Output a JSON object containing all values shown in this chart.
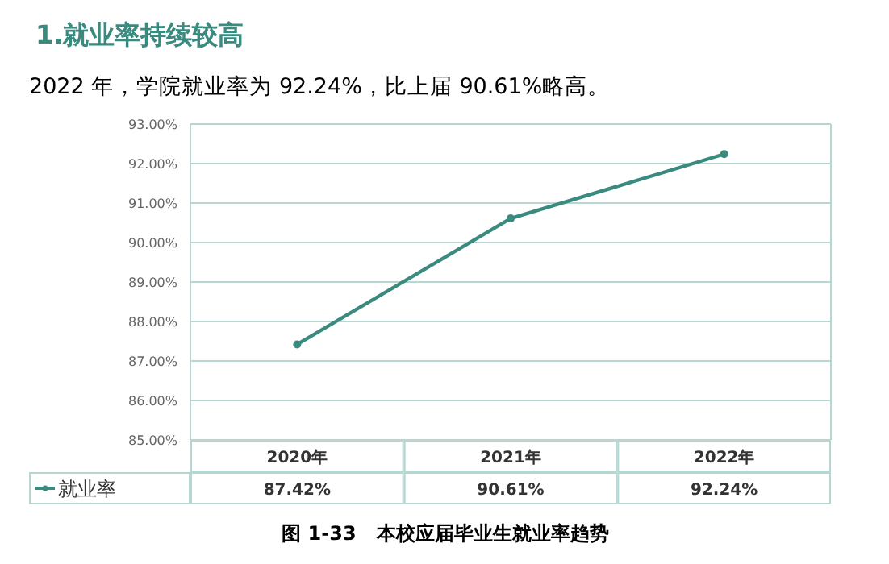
{
  "chart_data": {
    "type": "line",
    "title": "1.就业率持续较高",
    "subtitle": "2022 年，学院就业率为 92.24%，比上届 90.61%略高。",
    "annotations": [
      "图 1-33   本校应届毕业生就业率趋势"
    ],
    "categories": [
      "2020年",
      "2021年",
      "2022年"
    ],
    "series": [
      {
        "name": "就业率",
        "color": "#3b8a7f",
        "values": [
          87.42,
          90.61,
          92.24
        ],
        "value_labels": [
          "87.42%",
          "90.61%",
          "92.24%"
        ]
      }
    ],
    "ylim": [
      85,
      93
    ],
    "yticks": [
      {
        "value": 85,
        "label": "85.00%"
      },
      {
        "value": 86,
        "label": "86.00%"
      },
      {
        "value": 87,
        "label": "87.00%"
      },
      {
        "value": 88,
        "label": "88.00%"
      },
      {
        "value": 89,
        "label": "89.00%"
      },
      {
        "value": 90,
        "label": "90.00%"
      },
      {
        "value": 91,
        "label": "91.00%"
      },
      {
        "value": 92,
        "label": "92.00%"
      },
      {
        "value": 93,
        "label": "93.00%"
      }
    ],
    "grid": "y",
    "marker": "circle",
    "line_style": "solid",
    "legend": "bottom left",
    "data_labels": true
  }
}
